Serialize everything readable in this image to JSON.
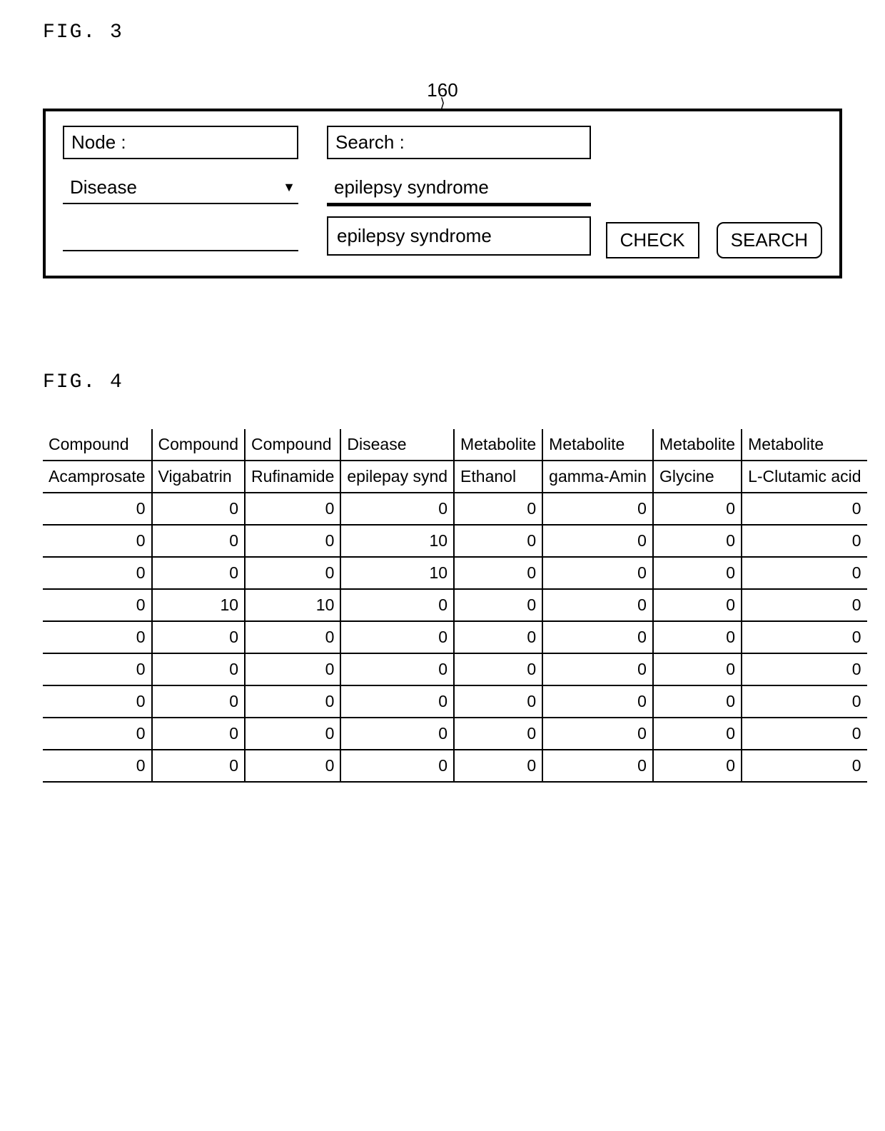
{
  "fig3": {
    "label": "FIG. 3",
    "ref_number": "160",
    "node_label": "Node :",
    "node_value": "Disease",
    "search_label": "Search :",
    "search_value": "epilepsy syndrome",
    "suggestion": "epilepsy syndrome",
    "check_btn": "CHECK",
    "search_btn": "SEARCH"
  },
  "fig4": {
    "label": "FIG. 4",
    "header_row1": [
      "Compound",
      "Compound",
      "Compound",
      "Disease",
      "Metabolite",
      "Metabolite",
      "Metabolite",
      "Metabolite"
    ],
    "header_row2": [
      "Acamprosate",
      "Vigabatrin",
      "Rufinamide",
      "epilepay synd",
      "Ethanol",
      "gamma-Amin",
      "Glycine",
      "L-Clutamic acid"
    ],
    "rows": [
      [
        0,
        0,
        0,
        0,
        0,
        0,
        0,
        0
      ],
      [
        0,
        0,
        0,
        10,
        0,
        0,
        0,
        0
      ],
      [
        0,
        0,
        0,
        10,
        0,
        0,
        0,
        0
      ],
      [
        0,
        10,
        10,
        0,
        0,
        0,
        0,
        0
      ],
      [
        0,
        0,
        0,
        0,
        0,
        0,
        0,
        0
      ],
      [
        0,
        0,
        0,
        0,
        0,
        0,
        0,
        0
      ],
      [
        0,
        0,
        0,
        0,
        0,
        0,
        0,
        0
      ],
      [
        0,
        0,
        0,
        0,
        0,
        0,
        0,
        0
      ],
      [
        0,
        0,
        0,
        0,
        0,
        0,
        0,
        0
      ]
    ],
    "col_widths_pct": [
      12,
      11,
      12,
      14,
      11,
      14,
      12,
      14
    ]
  },
  "colors": {
    "border": "#000000",
    "background": "#ffffff",
    "text": "#000000"
  }
}
